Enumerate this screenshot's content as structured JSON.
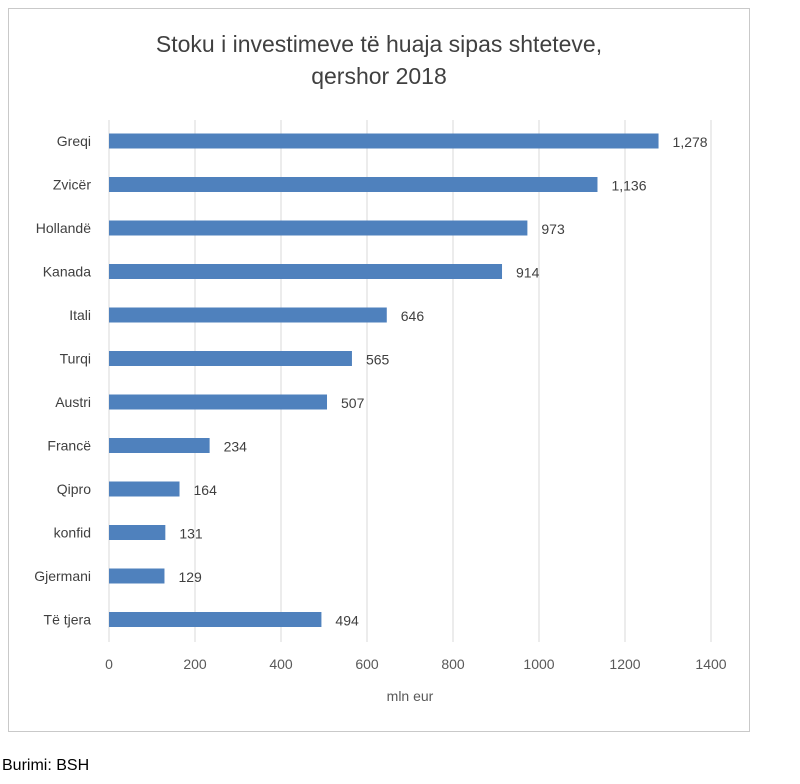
{
  "chart_data": {
    "type": "bar",
    "orientation": "horizontal",
    "title_line1": "Stoku i investimeve të huaja sipas shteteve,",
    "title_line2": "qershor 2018",
    "xlabel": "mln eur",
    "ylabel": "",
    "categories": [
      "Greqi",
      "Zvicër",
      "Hollandë",
      "Kanada",
      "Itali",
      "Turqi",
      "Austri",
      "Francë",
      "Qipro",
      "konfid",
      "Gjermani",
      "Të tjera"
    ],
    "values": [
      1278,
      1136,
      973,
      914,
      646,
      565,
      507,
      234,
      164,
      131,
      129,
      494
    ],
    "data_labels": [
      "1,278",
      "1,136",
      "973",
      "914",
      "646",
      "565",
      "507",
      "234",
      "164",
      "131",
      "129",
      "494"
    ],
    "xlim": [
      0,
      1400
    ],
    "xticks": [
      0,
      200,
      400,
      600,
      800,
      1000,
      1200,
      1400
    ],
    "grid": "vertical",
    "legend": "none",
    "bar_color": "#4f81bd",
    "grid_color": "#d9d9d9"
  },
  "source": "Burimi: BSH"
}
